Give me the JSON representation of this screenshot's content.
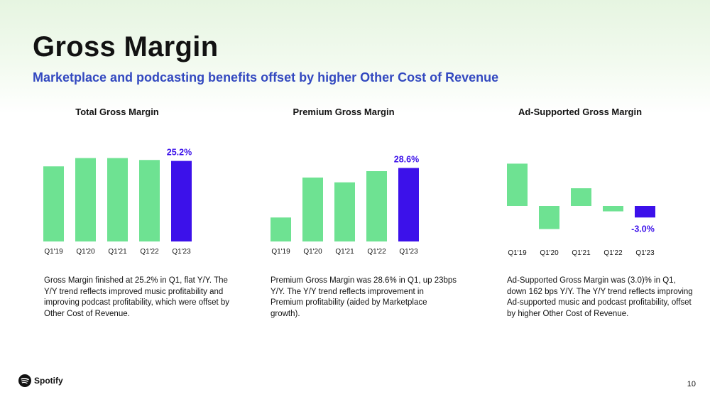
{
  "header": {
    "title": "Gross Margin",
    "subtitle": "Marketplace and podcasting benefits offset by higher Other Cost of Revenue"
  },
  "colors": {
    "bar": "#6ee292",
    "highlight": "#3c11ea",
    "accent_text": "#3349c0"
  },
  "chart_data": [
    {
      "type": "bar",
      "title": "Total Gross Margin",
      "categories": [
        "Q1'19",
        "Q1'20",
        "Q1'21",
        "Q1'22",
        "Q1'23"
      ],
      "values": [
        23.5,
        26.1,
        26.1,
        25.5,
        25.2
      ],
      "labels": [
        "",
        "",
        "",
        "",
        "25.2%"
      ],
      "highlight_index": 4,
      "ylim": [
        0,
        30
      ]
    },
    {
      "type": "bar",
      "title": "Premium Gross Margin",
      "categories": [
        "Q1'19",
        "Q1'20",
        "Q1'21",
        "Q1'22",
        "Q1'23"
      ],
      "values": [
        25.5,
        28.0,
        27.7,
        28.4,
        28.6
      ],
      "labels": [
        "",
        "",
        "",
        "",
        "28.6%"
      ],
      "highlight_index": 4,
      "ylim": [
        24.0,
        30.0
      ]
    },
    {
      "type": "bar",
      "title": "Ad-Supported Gross Margin",
      "categories": [
        "Q1'19",
        "Q1'20",
        "Q1'21",
        "Q1'22",
        "Q1'23"
      ],
      "values": [
        11.0,
        -6.0,
        4.6,
        -1.4,
        -3.0
      ],
      "labels": [
        "",
        "",
        "",
        "",
        "-3.0%"
      ],
      "highlight_index": 4,
      "ylim": [
        -12,
        12
      ]
    }
  ],
  "descriptions": [
    "Gross Margin finished at 25.2% in Q1, flat Y/Y. The Y/Y trend reflects improved music profitability and improving podcast profitability, which were offset by Other Cost of Revenue.",
    "Premium Gross Margin was 28.6% in Q1, up 23bps Y/Y. The Y/Y trend reflects improvement in Premium profitability (aided by Marketplace growth).",
    "Ad-Supported Gross Margin was (3.0)% in Q1, down 162 bps Y/Y. The Y/Y trend reflects improving Ad-supported music and podcast profitability, offset by higher Other Cost of Revenue."
  ],
  "footer": {
    "brand": "Spotify",
    "logo_icon": "spotify-logo-icon",
    "page_number": "10"
  }
}
